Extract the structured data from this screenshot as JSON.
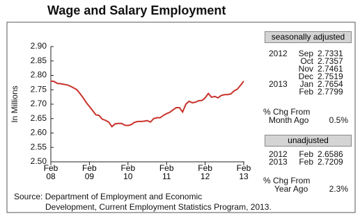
{
  "chart_data": {
    "type": "line",
    "title": "Wage and Salary Employment",
    "y_label": "In Millions",
    "categories": [
      "Feb 08",
      null,
      null,
      null,
      null,
      null,
      null,
      null,
      null,
      null,
      null,
      null,
      "Feb 09",
      null,
      null,
      null,
      null,
      null,
      null,
      null,
      null,
      null,
      null,
      null,
      "Feb 10",
      null,
      null,
      null,
      null,
      null,
      null,
      null,
      null,
      null,
      null,
      null,
      "Feb 11",
      null,
      null,
      null,
      null,
      null,
      null,
      null,
      null,
      null,
      null,
      null,
      "Feb 12",
      null,
      null,
      null,
      null,
      null,
      null,
      null,
      null,
      null,
      null,
      null,
      "Feb 13"
    ],
    "values": [
      2.78,
      2.779,
      2.772,
      2.771,
      2.769,
      2.767,
      2.763,
      2.757,
      2.751,
      2.738,
      2.723,
      2.706,
      2.692,
      2.678,
      2.663,
      2.661,
      2.648,
      2.644,
      2.638,
      2.622,
      2.632,
      2.633,
      2.633,
      2.627,
      2.626,
      2.629,
      2.637,
      2.64,
      2.64,
      2.641,
      2.643,
      2.638,
      2.65,
      2.653,
      2.653,
      2.661,
      2.667,
      2.672,
      2.68,
      2.688,
      2.688,
      2.673,
      2.7,
      2.71,
      2.705,
      2.707,
      2.712,
      2.713,
      2.722,
      2.737,
      2.724,
      2.727,
      2.722,
      2.73,
      2.733,
      2.7331,
      2.7357,
      2.7461,
      2.7519,
      2.7654,
      2.7799
    ],
    "color": "#c8322a",
    "ylim": [
      2.5,
      2.9
    ],
    "yticks": [
      {
        "value": 2.5,
        "label": "2.50"
      },
      {
        "value": 2.55,
        "label": "2.55"
      },
      {
        "value": 2.6,
        "label": "2.60"
      },
      {
        "value": 2.65,
        "label": "2.65"
      },
      {
        "value": 2.7,
        "label": "2.70"
      },
      {
        "value": 2.75,
        "label": "2.75"
      },
      {
        "value": 2.8,
        "label": "2.80"
      },
      {
        "value": 2.85,
        "label": "2.85"
      },
      {
        "value": 2.9,
        "label": "2.90"
      }
    ],
    "grid": false
  },
  "panel": {
    "seasonally_adjusted": {
      "heading": "seasonally adjusted",
      "rows": [
        [
          "2012",
          "Sep",
          "2.7331"
        ],
        [
          null,
          "Oct",
          "2.7357"
        ],
        [
          null,
          "Nov",
          "2.7461"
        ],
        [
          null,
          "Dec",
          "2.7519"
        ],
        [
          "2013",
          "Jan",
          "2.7654"
        ],
        [
          null,
          "Feb",
          "2.7799"
        ]
      ]
    },
    "month_change": {
      "label": [
        "% Chg From",
        "Month Ago"
      ],
      "value": "0.5%"
    },
    "unadjusted": {
      "heading": "unadjusted",
      "rows": [
        [
          "2012",
          "Feb",
          "2.6586"
        ],
        [
          "2013",
          "Feb",
          "2.7209"
        ]
      ]
    },
    "year_change": {
      "label": [
        "% Chg From",
        "Year Ago"
      ],
      "value": "2.3%"
    }
  },
  "source": [
    "Source: Department of Employment and Economic",
    "Development, Current Employment Statistics Program, 2013."
  ]
}
